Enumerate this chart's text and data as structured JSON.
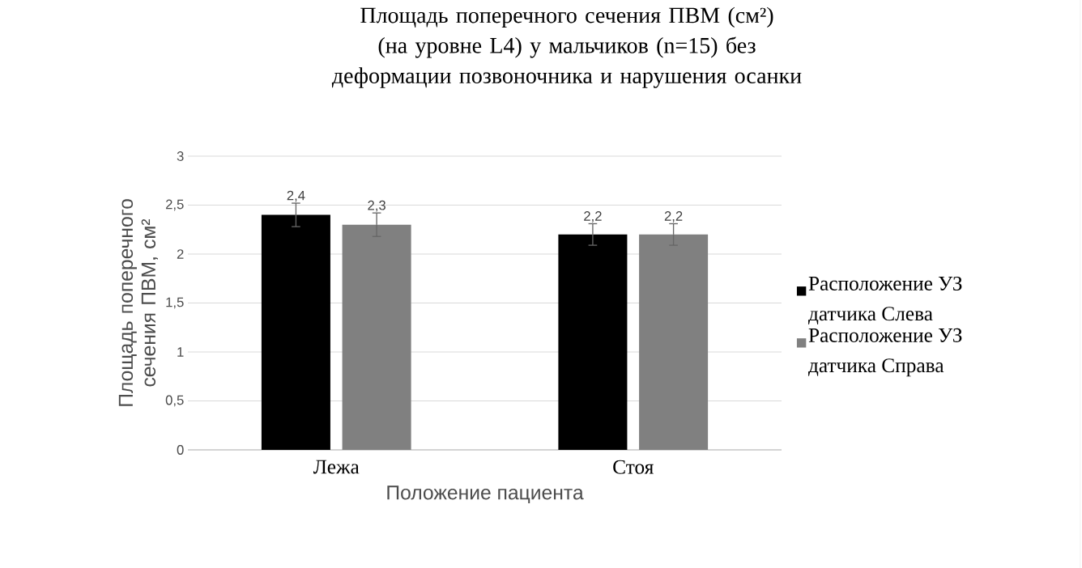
{
  "chart_data": {
    "type": "bar",
    "title": "Площадь поперечного сечения ПВМ (см²) (на уровне L4) у мальчиков (n=15) без деформации позвоночника и нарушения осанки",
    "xlabel": "Положение пациента",
    "ylabel": "Площадь поперечного сечения ПВМ, см²",
    "categories": [
      "Лежа",
      "Стоя"
    ],
    "series": [
      {
        "name": "Расположение УЗ датчика Слева",
        "color": "#000000",
        "values": [
          2.4,
          2.2
        ],
        "errors": [
          0.12,
          0.11
        ],
        "value_labels": [
          "2,4",
          "2,2"
        ]
      },
      {
        "name": "Расположение УЗ датчика Справа",
        "color": "#808080",
        "values": [
          2.3,
          2.2
        ],
        "errors": [
          0.12,
          0.11
        ],
        "value_labels": [
          "2,3",
          "2,2"
        ]
      }
    ],
    "ylim": [
      0,
      3
    ],
    "yticks": [
      0,
      {
        "value": 0.5,
        "label": "0,5"
      },
      1,
      {
        "value": 1.5,
        "label": "1,5"
      },
      2,
      {
        "value": 2.5,
        "label": "2,5"
      },
      3
    ],
    "grid": "y",
    "legend": "right"
  }
}
